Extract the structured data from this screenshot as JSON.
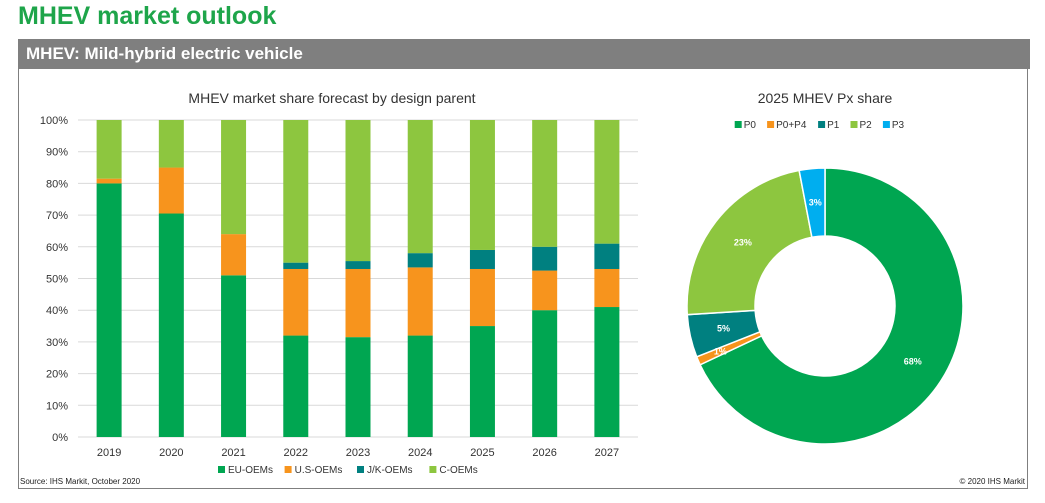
{
  "page": {
    "title": "MHEV market outlook",
    "banner": "MHEV: Mild-hybrid electric vehicle",
    "source": "Source: IHS Markit, October 2020",
    "copyright": "© 2020 IHS Markit"
  },
  "chart_data": [
    {
      "type": "bar",
      "stacked": true,
      "title": "MHEV market share forecast by design parent",
      "categories": [
        "2019",
        "2020",
        "2021",
        "2022",
        "2023",
        "2024",
        "2025",
        "2026",
        "2027"
      ],
      "yticks": [
        "0%",
        "10%",
        "20%",
        "30%",
        "40%",
        "50%",
        "60%",
        "70%",
        "80%",
        "90%",
        "100%"
      ],
      "ylim": [
        0,
        100
      ],
      "legend_position": "bottom",
      "series": [
        {
          "name": "EU-OEMs",
          "color": "#00a651",
          "values": [
            80,
            70.5,
            51,
            32,
            31.5,
            32,
            35,
            40,
            41
          ]
        },
        {
          "name": "U.S-OEMs",
          "color": "#f7941d",
          "values": [
            1.5,
            14.5,
            13,
            21,
            21.5,
            21.5,
            18,
            12.5,
            12
          ]
        },
        {
          "name": "J/K-OEMs",
          "color": "#008080",
          "values": [
            0,
            0,
            0,
            2,
            2.5,
            4.5,
            6,
            7.5,
            8
          ]
        },
        {
          "name": "C-OEMs",
          "color": "#8dc63f",
          "values": [
            18.5,
            15,
            36,
            45,
            44.5,
            42,
            41,
            40,
            39
          ]
        }
      ]
    },
    {
      "type": "pie",
      "donut": true,
      "title": "2025 MHEV Px share",
      "legend_position": "top",
      "slices": [
        {
          "label": "P0",
          "value": 68,
          "text": "68%",
          "color": "#00a651"
        },
        {
          "label": "P0+P4",
          "value": 1,
          "text": "1%",
          "color": "#f7941d"
        },
        {
          "label": "P1",
          "value": 5,
          "text": "5%",
          "color": "#008080"
        },
        {
          "label": "P2",
          "value": 23,
          "text": "23%",
          "color": "#8dc63f"
        },
        {
          "label": "P3",
          "value": 3,
          "text": "3%",
          "color": "#00aeef"
        }
      ]
    }
  ]
}
